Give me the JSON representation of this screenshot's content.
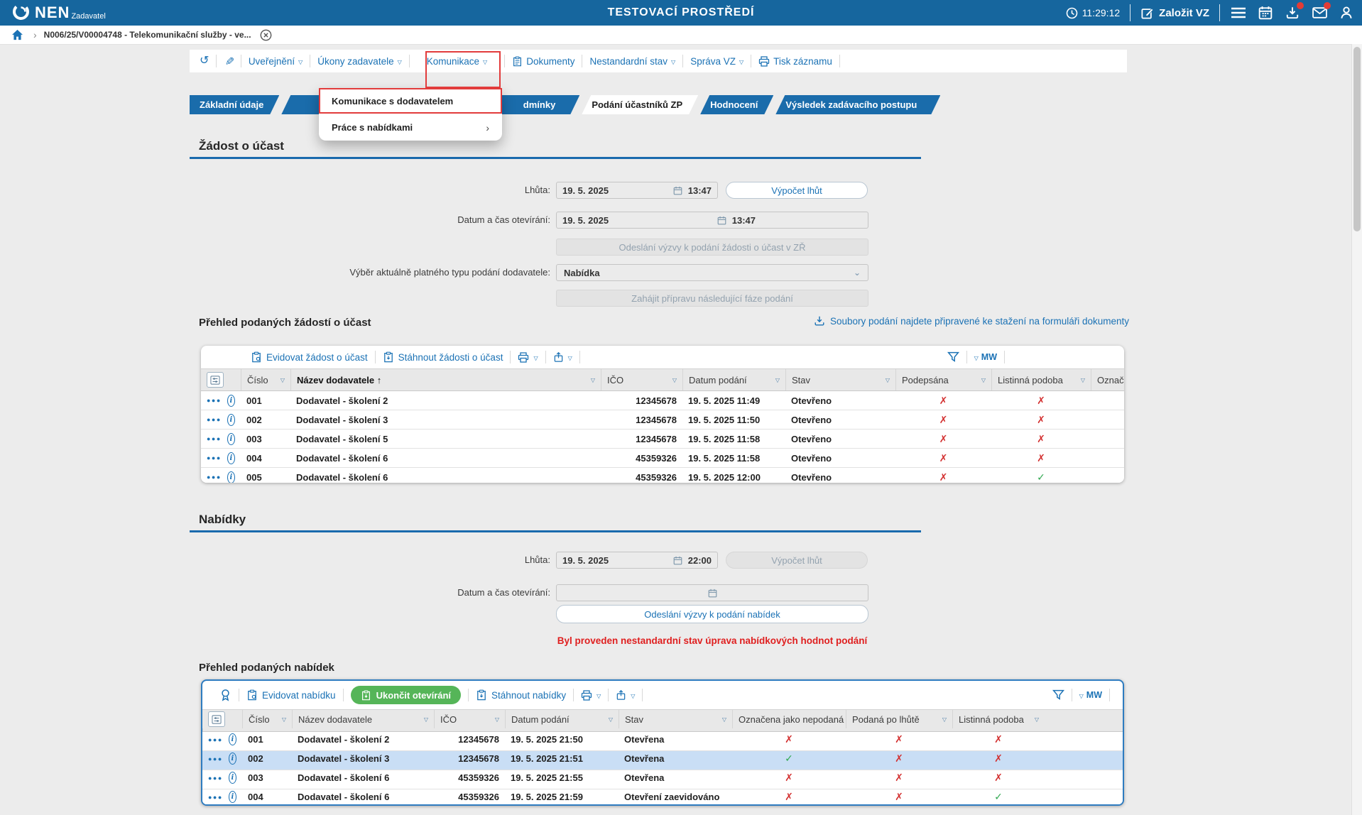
{
  "colors": {
    "topbar_bg": "#16669e",
    "accent_blue": "#1b72b5",
    "tab_blue": "#1a6cab",
    "underline_blue": "#1a6aad",
    "alert_red": "#df1f1f",
    "mark_red": "#d33030",
    "mark_green": "#2fa84f",
    "green_button": "#55b558",
    "row_highlight": "#c9def5"
  },
  "topbar": {
    "logo": "NEN",
    "role": "Zadavatel",
    "environment": "TESTOVACÍ PROSTŘEDÍ",
    "time": "11:29:12",
    "new_vz": "Založit VZ"
  },
  "breadcrumb": {
    "title": "N006/25/V00004748 - Telekomunikační služby - ve..."
  },
  "toolbar": {
    "items": [
      "Uveřejnění",
      "Úkony zadavatele",
      "Komunikace",
      "Dokumenty",
      "Nestandardní stav",
      "Správa VZ",
      "Tisk záznamu"
    ]
  },
  "menu": {
    "items": [
      "Komunikace s dodavatelem",
      "Práce s nabídkami"
    ]
  },
  "tabs": [
    "Základní údaje",
    "dmínky",
    "Podání účastníků ZP",
    "Hodnocení",
    "Výsledek zadávacího postupu"
  ],
  "zadost": {
    "title": "Žádost o účast",
    "lhuta_label": "Lhůta:",
    "lhuta_date": "19. 5. 2025",
    "lhuta_time": "13:47",
    "vypocet": "Výpočet lhůt",
    "otevirani_label": "Datum a čas otevírání:",
    "otevirani_date": "19. 5. 2025",
    "otevirani_time": "13:47",
    "odeslani": "Odeslání výzvy k podání žádosti o účast v ZŘ",
    "vyber_label": "Výběr aktuálně platného typu podání dodavatele:",
    "vyber_value": "Nabídka",
    "zahajit": "Zahájit přípravu následující fáze podání"
  },
  "zadosti_table": {
    "title": "Přehled podaných žádostí o účast",
    "link": "Soubory podání najdete připravené ke stažení na formuláři dokumenty",
    "evidovat": "Evidovat žádost o účast",
    "stahnout": "Stáhnout žádosti o účast",
    "mw": "MW",
    "columns": [
      "Číslo",
      "Název dodavatele",
      "IČO",
      "Datum podání",
      "Stav",
      "Podepsána",
      "Listinná podoba",
      "Označ"
    ],
    "rows": [
      {
        "cislo": "001",
        "nazev": "Dodavatel - školení 2",
        "ico": "12345678",
        "datum": "19. 5. 2025 11:49",
        "stav": "Otevřeno",
        "podepsana": false,
        "listinna": false
      },
      {
        "cislo": "002",
        "nazev": "Dodavatel - školení 3",
        "ico": "12345678",
        "datum": "19. 5. 2025 11:50",
        "stav": "Otevřeno",
        "podepsana": false,
        "listinna": false
      },
      {
        "cislo": "003",
        "nazev": "Dodavatel - školení 5",
        "ico": "12345678",
        "datum": "19. 5. 2025 11:58",
        "stav": "Otevřeno",
        "podepsana": false,
        "listinna": false
      },
      {
        "cislo": "004",
        "nazev": "Dodavatel - školení 6",
        "ico": "45359326",
        "datum": "19. 5. 2025 11:58",
        "stav": "Otevřeno",
        "podepsana": false,
        "listinna": false
      },
      {
        "cislo": "005",
        "nazev": "Dodavatel - školení 6",
        "ico": "45359326",
        "datum": "19. 5. 2025 12:00",
        "stav": "Otevřeno",
        "podepsana": false,
        "listinna": true
      }
    ]
  },
  "nabidky": {
    "title": "Nabídky",
    "lhuta_label": "Lhůta:",
    "lhuta_date": "19. 5. 2025",
    "lhuta_time": "22:00",
    "vypocet": "Výpočet lhůt",
    "otevirani_label": "Datum a čas otevírání:",
    "odeslani": "Odeslání výzvy k podání nabídek",
    "warning": "Byl proveden nestandardní stav úprava nabídkových hodnot podání"
  },
  "nabidky_table": {
    "title": "Přehled podaných nabídek",
    "evidovat": "Evidovat nabídku",
    "ukoncit": "Ukončit otevírání",
    "stahnout": "Stáhnout nabídky",
    "mw": "MW",
    "columns": [
      "Číslo",
      "Název dodavatele",
      "IČO",
      "Datum podání",
      "Stav",
      "Označena jako nepodaná",
      "Podaná po lhůtě",
      "Listinná podoba"
    ],
    "rows": [
      {
        "cislo": "001",
        "nazev": "Dodavatel - školení 2",
        "ico": "12345678",
        "datum": "19. 5. 2025 21:50",
        "stav": "Otevřena",
        "nepodana": false,
        "po_lhute": false,
        "listinna": false
      },
      {
        "cislo": "002",
        "nazev": "Dodavatel - školení 3",
        "ico": "12345678",
        "datum": "19. 5. 2025 21:51",
        "stav": "Otevřena",
        "nepodana": true,
        "po_lhute": false,
        "listinna": false,
        "highlight": true
      },
      {
        "cislo": "003",
        "nazev": "Dodavatel - školení 6",
        "ico": "45359326",
        "datum": "19. 5. 2025 21:55",
        "stav": "Otevřena",
        "nepodana": false,
        "po_lhute": false,
        "listinna": false
      },
      {
        "cislo": "004",
        "nazev": "Dodavatel - školení 6",
        "ico": "45359326",
        "datum": "19. 5. 2025 21:59",
        "stav": "Otevření zaevidováno",
        "nepodana": false,
        "po_lhute": false,
        "listinna": true
      }
    ]
  }
}
